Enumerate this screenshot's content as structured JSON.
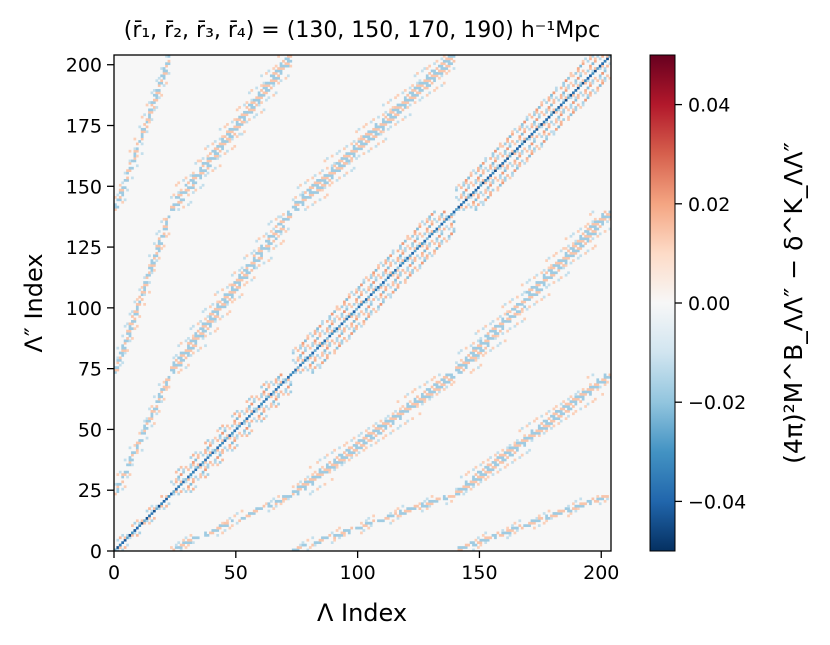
{
  "chart_data": {
    "type": "heatmap",
    "title": "(r̄₁, r̄₂, r̄₃, r̄₄) = (130, 150, 170, 190) h⁻¹Mpc",
    "xlabel": "Λ Index",
    "ylabel": "Λ″ Index",
    "xlim": [
      0,
      204
    ],
    "ylim": [
      0,
      204
    ],
    "x_ticks": [
      0,
      50,
      100,
      150,
      200
    ],
    "y_ticks": [
      0,
      25,
      50,
      75,
      100,
      125,
      150,
      175,
      200
    ],
    "x_tick_labels": [
      "0",
      "50",
      "100",
      "150",
      "200"
    ],
    "y_tick_labels": [
      "0",
      "25",
      "50",
      "75",
      "100",
      "125",
      "150",
      "175",
      "200"
    ],
    "colorbar": {
      "label": "(4π)²M^B_ΛΛ″ − δ^K_ΛΛ″",
      "min": -0.05,
      "max": 0.05,
      "ticks": [
        0.04,
        0.02,
        0.0,
        -0.02,
        -0.04
      ],
      "tick_labels": [
        "0.04",
        "0.02",
        "0.00",
        "−0.02",
        "−0.04"
      ],
      "colormap": "RdBu_r"
    },
    "blocks": [
      {
        "start": 0,
        "end": 23,
        "diagonal_amplitude": -0.045
      },
      {
        "start": 23,
        "end": 73,
        "diagonal_amplitude": -0.04
      },
      {
        "start": 73,
        "end": 140,
        "diagonal_amplitude": -0.04
      },
      {
        "start": 140,
        "end": 204,
        "diagonal_amplitude": -0.045
      }
    ],
    "off_diagonal_band_amplitude": 0.02,
    "background_value": 0.0
  }
}
